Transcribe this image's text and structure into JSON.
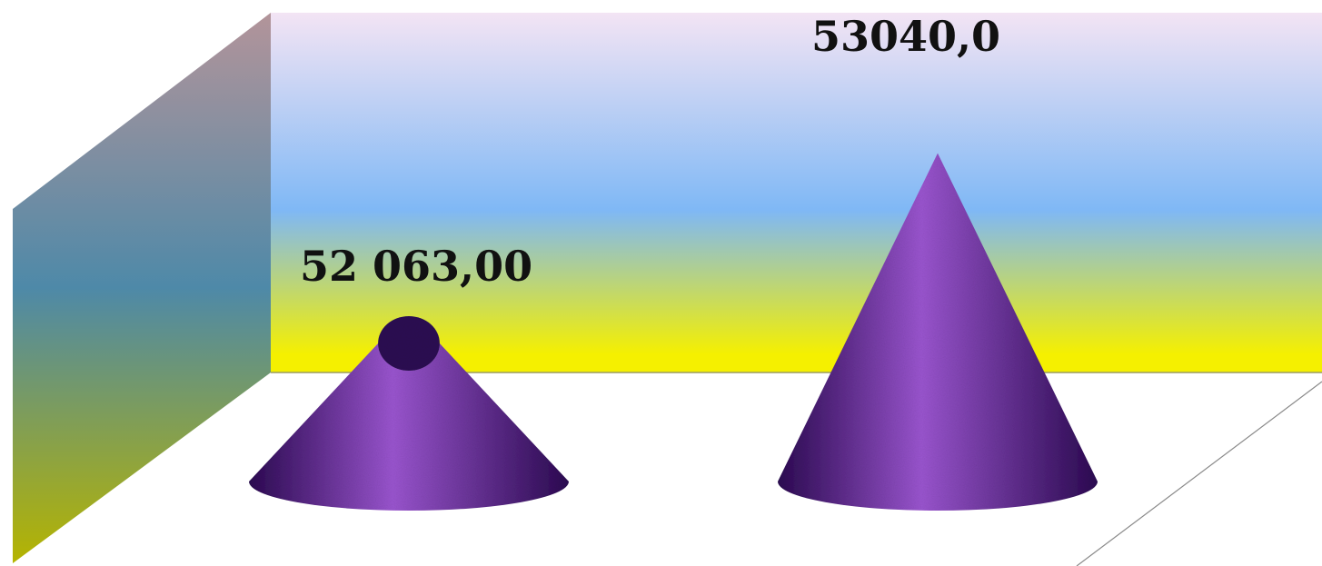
{
  "chart_data": {
    "type": "bar",
    "bar_shape": "cone",
    "categories": [
      "",
      ""
    ],
    "series": [
      {
        "values": [
          52063.0,
          53040.0
        ],
        "data_labels": [
          "52 063,00",
          "53040,0"
        ]
      }
    ],
    "ylim": [
      51000,
      53100
    ],
    "grid": false,
    "legend": "none",
    "axes_visible": false
  },
  "colors": {
    "bar": "#5a1d8c",
    "bar_highlight": "#9a55cf",
    "bar_shadow": "#2c0a52",
    "back_wall_top": "#f3e4f4",
    "back_wall_mid": "#7fb8f5",
    "back_wall_bottom": "#f5f000",
    "side_wall_top": "#b3949a",
    "side_wall_mid": "#4e89a8",
    "side_wall_bottom": "#b5b400",
    "floor": "#ffffff"
  }
}
